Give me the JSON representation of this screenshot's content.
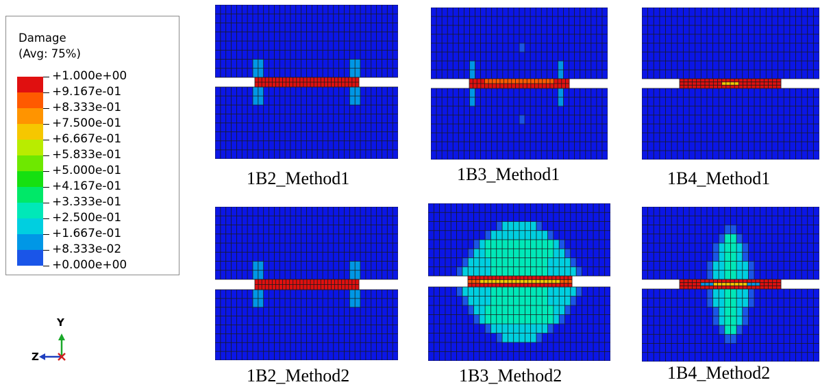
{
  "legend": {
    "title": "Damage",
    "average": "(Avg: 75%)",
    "entries": [
      {
        "label": "+1.000e+00",
        "color": "#e01010"
      },
      {
        "label": "+9.167e-01",
        "color": "#ff5a00"
      },
      {
        "label": "+8.333e-01",
        "color": "#ff9400"
      },
      {
        "label": "+7.500e-01",
        "color": "#f6c700"
      },
      {
        "label": "+6.667e-01",
        "color": "#b9ec00"
      },
      {
        "label": "+5.833e-01",
        "color": "#6ee800"
      },
      {
        "label": "+5.000e-01",
        "color": "#16e010"
      },
      {
        "label": "+4.167e-01",
        "color": "#00e868"
      },
      {
        "label": "+3.333e-01",
        "color": "#00e8b8"
      },
      {
        "label": "+2.500e-01",
        "color": "#00cfe0"
      },
      {
        "label": "+1.667e-01",
        "color": "#0097e6"
      },
      {
        "label": "+8.333e-02",
        "color": "#1a55e8"
      },
      {
        "label": "+0.000e+00",
        "color": "#0b16e6"
      }
    ]
  },
  "panels": [
    {
      "caption": "1B2_Method1",
      "case": "1B2",
      "method": "Method1"
    },
    {
      "caption": "1B3_Method1",
      "case": "1B3",
      "method": "Method1"
    },
    {
      "caption": "1B4_Method1",
      "case": "1B4",
      "method": "Method1"
    },
    {
      "caption": "1B2_Method2",
      "case": "1B2",
      "method": "Method2"
    },
    {
      "caption": "1B3_Method2",
      "case": "1B3",
      "method": "Method2"
    },
    {
      "caption": "1B4_Method2",
      "case": "1B4",
      "method": "Method2"
    }
  ],
  "triad": {
    "y_label": "Y",
    "z_label": "Z",
    "x_label": "X",
    "y_color": "#1aa82a",
    "z_color": "#1f3fbf",
    "x_color": "#d02020"
  },
  "colors": {
    "mesh_line": "#1a1a1a",
    "base": "#0b16e6"
  }
}
